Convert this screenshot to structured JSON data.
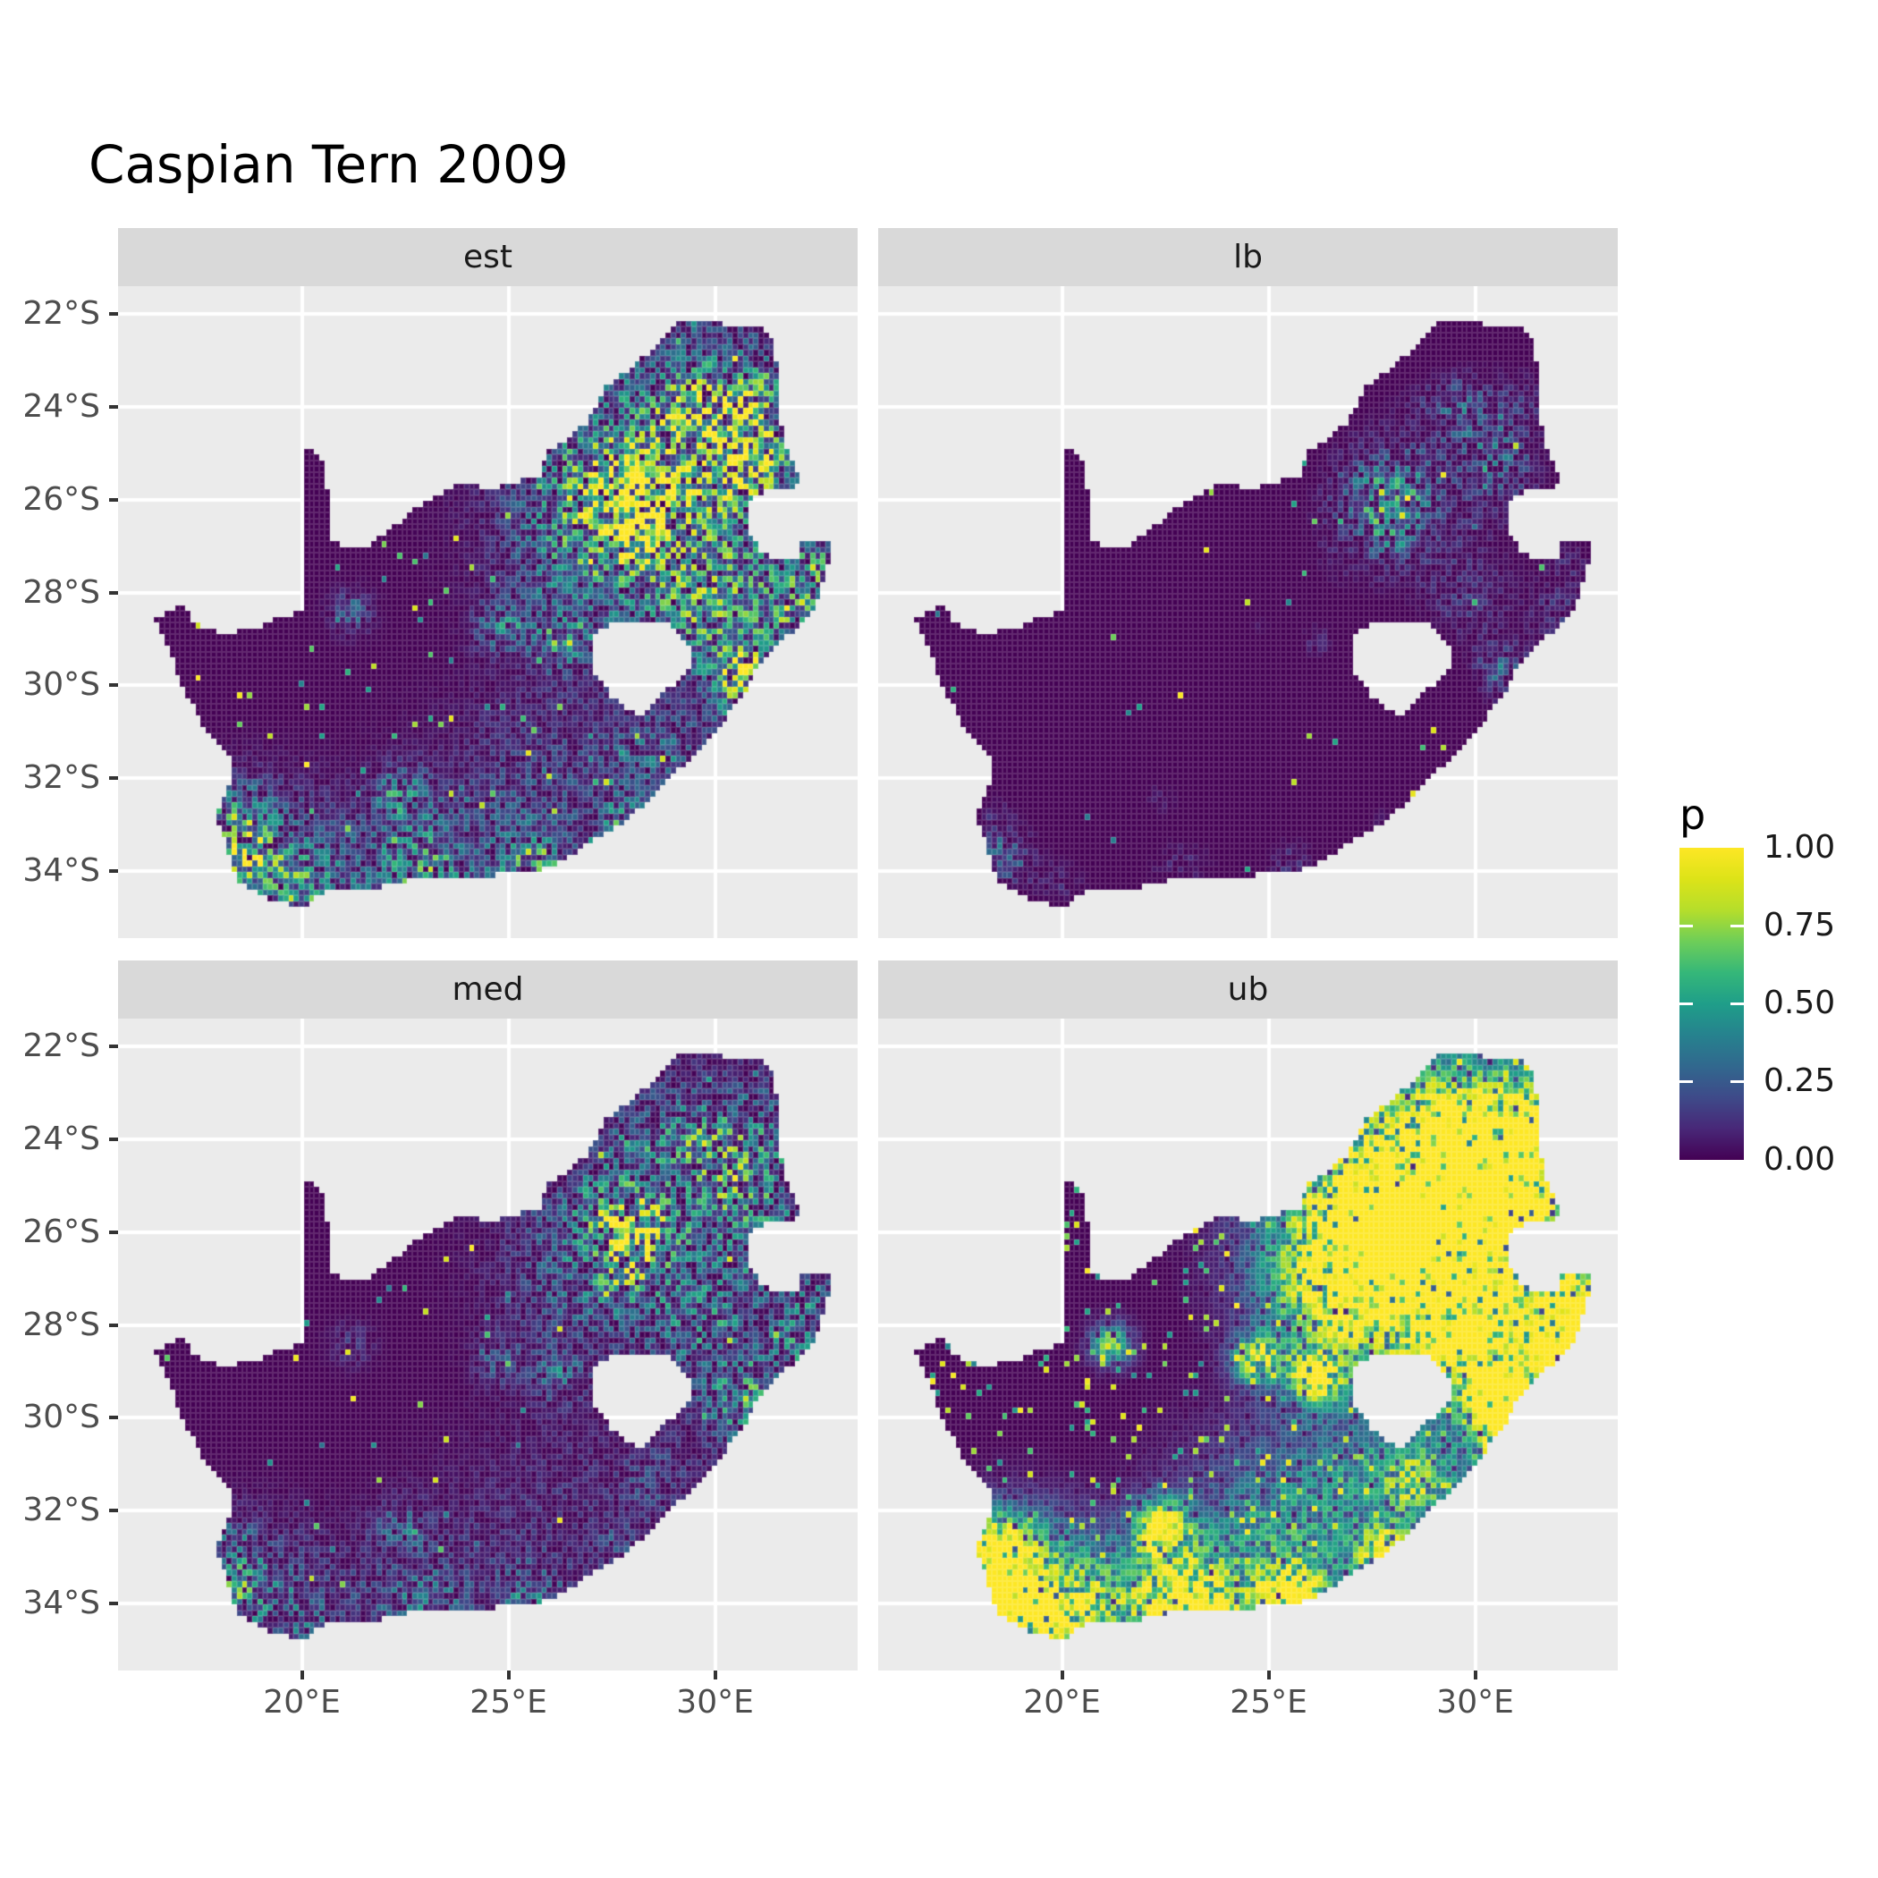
{
  "title": "Caspian Tern 2009",
  "facets": [
    {
      "label": "est",
      "row": 0,
      "col": 0
    },
    {
      "label": "lb",
      "row": 0,
      "col": 1
    },
    {
      "label": "med",
      "row": 1,
      "col": 0
    },
    {
      "label": "ub",
      "row": 1,
      "col": 1
    }
  ],
  "axes": {
    "x_ticks": [
      {
        "label": "20°E",
        "lon": 20
      },
      {
        "label": "25°E",
        "lon": 25
      },
      {
        "label": "30°E",
        "lon": 30
      }
    ],
    "y_ticks": [
      {
        "label": "22°S",
        "lat": -22
      },
      {
        "label": "24°S",
        "lat": -24
      },
      {
        "label": "26°S",
        "lat": -26
      },
      {
        "label": "28°S",
        "lat": -28
      },
      {
        "label": "30°S",
        "lat": -30
      },
      {
        "label": "32°S",
        "lat": -32
      },
      {
        "label": "34°S",
        "lat": -34
      }
    ]
  },
  "legend": {
    "title": "p",
    "labels": [
      "1.00",
      "0.75",
      "0.50",
      "0.25",
      "0.00"
    ],
    "values": [
      1.0,
      0.75,
      0.5,
      0.25,
      0.0
    ],
    "tick_values": [
      0.75,
      0.5,
      0.25
    ]
  },
  "colors": {
    "background": "#FFFFFF",
    "panel_bg": "#EBEBEB",
    "strip_bg": "#D9D9D9",
    "grid": "#FFFFFF",
    "axis_text": "#4D4D4D",
    "tick_mark": "#333333",
    "title_text": "#000000",
    "cell_border": "rgba(255,255,255,0.16)"
  },
  "chart_data": {
    "type": "heatmap",
    "subtype": "faceted raster probability map of South Africa",
    "title": "Caspian Tern 2009",
    "facets": [
      "est",
      "lb",
      "med",
      "ub"
    ],
    "variable": "p",
    "value_range": [
      0.0,
      1.0
    ],
    "legend_position": "right",
    "grid": "on",
    "extent": {
      "lon": [
        15.55,
        33.45
      ],
      "lat": [
        -35.45,
        -21.4
      ]
    },
    "resolution_deg": 0.125,
    "color_scale": {
      "name": "viridis",
      "stops": [
        [
          0.0,
          "#440154"
        ],
        [
          0.1,
          "#482878"
        ],
        [
          0.2,
          "#3e4a89"
        ],
        [
          0.3,
          "#31688e"
        ],
        [
          0.4,
          "#26828e"
        ],
        [
          0.5,
          "#1f9e89"
        ],
        [
          0.6,
          "#35b779"
        ],
        [
          0.7,
          "#6ece58"
        ],
        [
          0.8,
          "#b5de2b"
        ],
        [
          0.9,
          "#dde318"
        ],
        [
          1.0,
          "#fde725"
        ]
      ]
    },
    "hotspots": [
      [
        28.3,
        -26.0,
        1.7,
        0.6
      ],
      [
        29.6,
        -24.6,
        1.9,
        0.42
      ],
      [
        30.8,
        -28.6,
        1.4,
        0.38
      ],
      [
        26.6,
        -27.2,
        1.1,
        0.3
      ],
      [
        26.5,
        -31.9,
        1.6,
        0.22
      ],
      [
        24.0,
        -34.15,
        1.5,
        0.3
      ],
      [
        20.8,
        -34.2,
        1.0,
        0.32
      ],
      [
        18.9,
        -33.3,
        0.9,
        0.4
      ],
      [
        28.0,
        -26.15,
        0.42,
        1.0
      ],
      [
        28.25,
        -25.7,
        0.4,
        0.7
      ],
      [
        27.95,
        -26.7,
        0.45,
        0.6
      ],
      [
        26.15,
        -29.1,
        0.38,
        0.55
      ],
      [
        24.75,
        -28.74,
        0.34,
        0.5
      ],
      [
        30.95,
        -29.8,
        0.42,
        0.85
      ],
      [
        30.35,
        -29.55,
        0.4,
        0.45
      ],
      [
        32.05,
        -28.5,
        0.45,
        0.55
      ],
      [
        32.35,
        -27.4,
        0.45,
        0.5
      ],
      [
        27.85,
        -32.95,
        0.4,
        0.5
      ],
      [
        25.6,
        -33.85,
        0.42,
        0.6
      ],
      [
        22.4,
        -32.35,
        0.4,
        0.55
      ],
      [
        22.9,
        -33.95,
        0.6,
        0.45
      ],
      [
        18.55,
        -33.8,
        0.42,
        1.0
      ],
      [
        18.25,
        -32.7,
        0.45,
        0.45
      ],
      [
        19.9,
        -34.45,
        0.45,
        0.4
      ],
      [
        21.2,
        -28.42,
        0.3,
        0.4
      ],
      [
        29.45,
        -23.88,
        0.45,
        0.45
      ],
      [
        30.95,
        -25.45,
        0.5,
        0.5
      ],
      [
        30.2,
        -24.6,
        0.55,
        0.45
      ],
      [
        31.1,
        -23.9,
        0.7,
        0.45
      ],
      [
        27.2,
        -25.65,
        0.55,
        0.42
      ],
      [
        29.75,
        -28.2,
        0.6,
        0.35
      ],
      [
        28.6,
        -31.4,
        0.6,
        0.32
      ],
      [
        30.7,
        -30.7,
        0.45,
        0.4
      ]
    ],
    "facet_params": {
      "est": {
        "sub": 0.0,
        "gain": 1.15,
        "upow": 1.25,
        "salt": 0.016,
        "salt_lo": 0.35
      },
      "lb": {
        "sub": 0.5,
        "gain": 0.55,
        "upow": 1.8,
        "salt": 0.0045,
        "salt_lo": 0.3
      },
      "med": {
        "sub": 0.0,
        "gain": 0.72,
        "upow": 1.5,
        "salt": 0.011,
        "salt_lo": 0.3
      },
      "ub": {
        "sub": 0.0,
        "gain": 2.4,
        "upow": 0.45,
        "salt": 0.055,
        "salt_lo": 0.4
      }
    },
    "south_africa_outline": [
      [
        16.45,
        -28.58
      ],
      [
        17.05,
        -28.25
      ],
      [
        17.45,
        -28.7
      ],
      [
        18.1,
        -28.87
      ],
      [
        18.9,
        -28.8
      ],
      [
        19.55,
        -28.5
      ],
      [
        19.99,
        -28.43
      ],
      [
        19.99,
        -24.77
      ],
      [
        20.55,
        -25.2
      ],
      [
        20.62,
        -25.8
      ],
      [
        20.68,
        -26.4
      ],
      [
        20.72,
        -26.9
      ],
      [
        21.1,
        -27.05
      ],
      [
        21.7,
        -26.95
      ],
      [
        22.25,
        -26.55
      ],
      [
        22.75,
        -26.2
      ],
      [
        23.3,
        -25.9
      ],
      [
        23.9,
        -25.58
      ],
      [
        24.55,
        -25.78
      ],
      [
        25.2,
        -25.62
      ],
      [
        25.75,
        -25.48
      ],
      [
        25.98,
        -24.92
      ],
      [
        26.55,
        -24.62
      ],
      [
        26.95,
        -24.28
      ],
      [
        27.3,
        -23.62
      ],
      [
        27.98,
        -23.18
      ],
      [
        28.32,
        -22.88
      ],
      [
        29.05,
        -22.2
      ],
      [
        29.8,
        -22.15
      ],
      [
        30.6,
        -22.3
      ],
      [
        31.3,
        -22.35
      ],
      [
        31.55,
        -23.2
      ],
      [
        31.55,
        -24.2
      ],
      [
        31.7,
        -24.8
      ],
      [
        31.9,
        -25.2
      ],
      [
        32.0,
        -25.45
      ],
      [
        31.98,
        -25.72
      ],
      [
        31.4,
        -25.73
      ],
      [
        30.95,
        -25.9
      ],
      [
        30.79,
        -26.1
      ],
      [
        30.78,
        -26.45
      ],
      [
        30.88,
        -26.8
      ],
      [
        31.1,
        -27.13
      ],
      [
        31.55,
        -27.3
      ],
      [
        31.97,
        -27.33
      ],
      [
        32.13,
        -26.86
      ],
      [
        32.89,
        -26.86
      ],
      [
        32.45,
        -28.3
      ],
      [
        31.75,
        -28.95
      ],
      [
        31.05,
        -29.55
      ],
      [
        30.65,
        -30.25
      ],
      [
        29.95,
        -31.05
      ],
      [
        29.2,
        -31.75
      ],
      [
        28.55,
        -32.3
      ],
      [
        27.85,
        -32.95
      ],
      [
        27.1,
        -33.3
      ],
      [
        26.4,
        -33.75
      ],
      [
        25.65,
        -34.0
      ],
      [
        25.0,
        -33.97
      ],
      [
        24.45,
        -34.2
      ],
      [
        23.4,
        -34.1
      ],
      [
        22.55,
        -34.2
      ],
      [
        21.55,
        -34.4
      ],
      [
        20.55,
        -34.45
      ],
      [
        20.0,
        -34.82
      ],
      [
        19.3,
        -34.62
      ],
      [
        18.8,
        -34.4
      ],
      [
        18.45,
        -34.25
      ],
      [
        18.33,
        -33.9
      ],
      [
        18.05,
        -33.15
      ],
      [
        17.88,
        -32.78
      ],
      [
        18.32,
        -32.05
      ],
      [
        18.28,
        -31.55
      ],
      [
        17.75,
        -31.05
      ],
      [
        17.1,
        -30.05
      ],
      [
        16.9,
        -29.45
      ]
    ],
    "lesotho_hole": [
      [
        27.02,
        -28.92
      ],
      [
        27.45,
        -28.68
      ],
      [
        27.95,
        -28.68
      ],
      [
        28.4,
        -28.6
      ],
      [
        28.85,
        -28.68
      ],
      [
        29.2,
        -28.95
      ],
      [
        29.45,
        -29.3
      ],
      [
        29.35,
        -29.72
      ],
      [
        29.1,
        -29.95
      ],
      [
        28.7,
        -30.15
      ],
      [
        28.25,
        -30.65
      ],
      [
        27.85,
        -30.48
      ],
      [
        27.45,
        -30.2
      ],
      [
        27.1,
        -29.7
      ],
      [
        26.98,
        -29.3
      ]
    ]
  }
}
